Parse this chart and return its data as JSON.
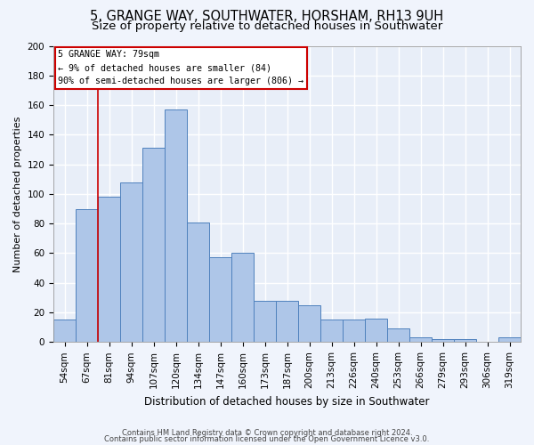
{
  "title1": "5, GRANGE WAY, SOUTHWATER, HORSHAM, RH13 9UH",
  "title2": "Size of property relative to detached houses in Southwater",
  "xlabel": "Distribution of detached houses by size in Southwater",
  "ylabel": "Number of detached properties",
  "categories": [
    "54sqm",
    "67sqm",
    "81sqm",
    "94sqm",
    "107sqm",
    "120sqm",
    "134sqm",
    "147sqm",
    "160sqm",
    "173sqm",
    "187sqm",
    "200sqm",
    "213sqm",
    "226sqm",
    "240sqm",
    "253sqm",
    "266sqm",
    "279sqm",
    "293sqm",
    "306sqm",
    "319sqm"
  ],
  "values": [
    15,
    90,
    98,
    108,
    131,
    157,
    81,
    57,
    60,
    28,
    28,
    25,
    15,
    15,
    16,
    9,
    3,
    2,
    2,
    0,
    3
  ],
  "bar_color": "#aec6e8",
  "bar_edge_color": "#4f81bd",
  "vline_color": "#cc0000",
  "box_text_line1": "5 GRANGE WAY: 79sqm",
  "box_text_line2": "← 9% of detached houses are smaller (84)",
  "box_text_line3": "90% of semi-detached houses are larger (806) →",
  "box_edge_color": "#cc0000",
  "box_bg": "#ffffff",
  "ylim": [
    0,
    200
  ],
  "yticks": [
    0,
    20,
    40,
    60,
    80,
    100,
    120,
    140,
    160,
    180,
    200
  ],
  "footer1": "Contains HM Land Registry data © Crown copyright and database right 2024.",
  "footer2": "Contains public sector information licensed under the Open Government Licence v3.0.",
  "bg_color": "#e8eef8",
  "grid_color": "#ffffff",
  "fig_bg": "#f0f4fc",
  "title1_fontsize": 10.5,
  "title2_fontsize": 9.5,
  "xlabel_fontsize": 8.5,
  "ylabel_fontsize": 8.0,
  "tick_fontsize": 7.5,
  "footer_fontsize": 6.0
}
